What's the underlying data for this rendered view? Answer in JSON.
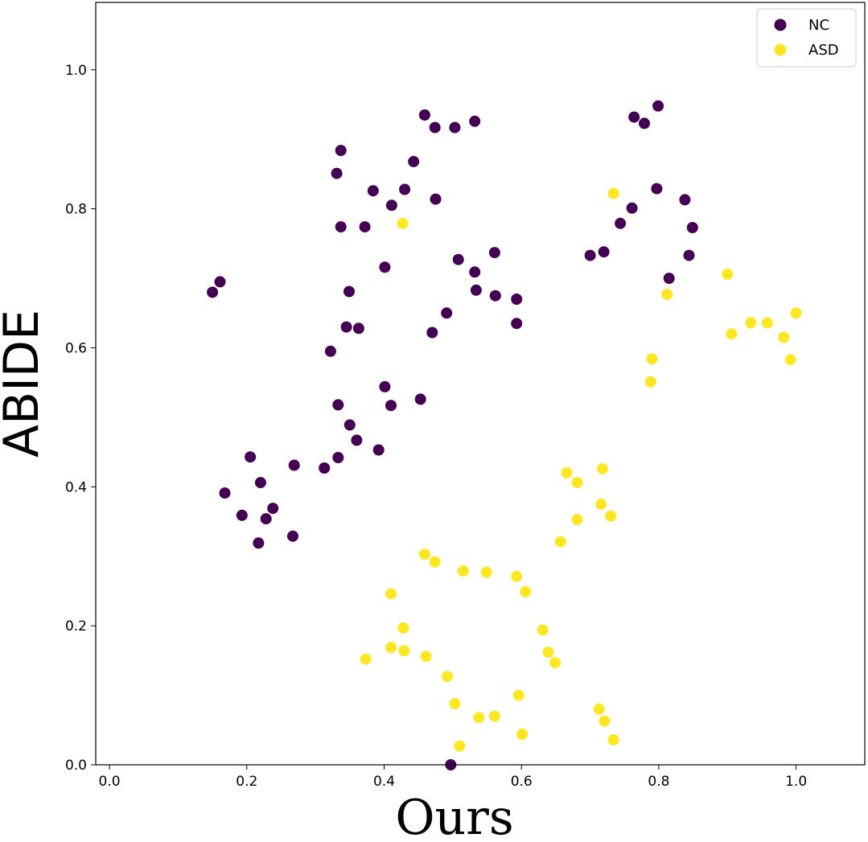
{
  "chart_data": {
    "type": "scatter",
    "xlabel": "Ours",
    "ylabel": "ABIDE",
    "xlim": [
      -0.02,
      1.1
    ],
    "ylim": [
      0.0,
      1.097
    ],
    "xticks": [
      "0.0",
      "0.2",
      "0.4",
      "0.6",
      "0.8",
      "1.0"
    ],
    "yticks": [
      "0.0",
      "0.2",
      "0.4",
      "0.6",
      "0.8",
      "1.0"
    ],
    "grid": false,
    "legend_position": "top-right",
    "series": [
      {
        "name": "NC",
        "color": "#440154",
        "points": [
          [
            0.497,
            0.0
          ],
          [
            0.217,
            0.319
          ],
          [
            0.267,
            0.329
          ],
          [
            0.193,
            0.359
          ],
          [
            0.228,
            0.354
          ],
          [
            0.238,
            0.369
          ],
          [
            0.168,
            0.391
          ],
          [
            0.22,
            0.406
          ],
          [
            0.205,
            0.443
          ],
          [
            0.269,
            0.431
          ],
          [
            0.313,
            0.427
          ],
          [
            0.333,
            0.442
          ],
          [
            0.392,
            0.453
          ],
          [
            0.36,
            0.467
          ],
          [
            0.35,
            0.489
          ],
          [
            0.333,
            0.518
          ],
          [
            0.41,
            0.517
          ],
          [
            0.401,
            0.544
          ],
          [
            0.453,
            0.526
          ],
          [
            0.322,
            0.595
          ],
          [
            0.345,
            0.63
          ],
          [
            0.363,
            0.628
          ],
          [
            0.47,
            0.622
          ],
          [
            0.491,
            0.65
          ],
          [
            0.349,
            0.681
          ],
          [
            0.401,
            0.716
          ],
          [
            0.508,
            0.727
          ],
          [
            0.532,
            0.709
          ],
          [
            0.534,
            0.683
          ],
          [
            0.562,
            0.675
          ],
          [
            0.593,
            0.67
          ],
          [
            0.561,
            0.737
          ],
          [
            0.593,
            0.635
          ],
          [
            0.15,
            0.68
          ],
          [
            0.161,
            0.695
          ],
          [
            0.337,
            0.774
          ],
          [
            0.372,
            0.774
          ],
          [
            0.384,
            0.826
          ],
          [
            0.411,
            0.805
          ],
          [
            0.43,
            0.828
          ],
          [
            0.475,
            0.814
          ],
          [
            0.331,
            0.851
          ],
          [
            0.337,
            0.884
          ],
          [
            0.443,
            0.868
          ],
          [
            0.459,
            0.935
          ],
          [
            0.474,
            0.917
          ],
          [
            0.503,
            0.917
          ],
          [
            0.532,
            0.926
          ],
          [
            0.7,
            0.733
          ],
          [
            0.72,
            0.738
          ],
          [
            0.744,
            0.779
          ],
          [
            0.761,
            0.801
          ],
          [
            0.797,
            0.829
          ],
          [
            0.838,
            0.813
          ],
          [
            0.849,
            0.773
          ],
          [
            0.844,
            0.733
          ],
          [
            0.815,
            0.7
          ],
          [
            0.764,
            0.932
          ],
          [
            0.779,
            0.923
          ],
          [
            0.799,
            0.948
          ]
        ]
      },
      {
        "name": "ASD",
        "color": "#fde725",
        "points": [
          [
            0.427,
            0.779
          ],
          [
            0.734,
            0.822
          ],
          [
            0.812,
            0.677
          ],
          [
            0.9,
            0.706
          ],
          [
            0.906,
            0.62
          ],
          [
            0.934,
            0.636
          ],
          [
            0.958,
            0.636
          ],
          [
            0.982,
            0.615
          ],
          [
            0.992,
            0.583
          ],
          [
            1.0,
            0.65
          ],
          [
            0.79,
            0.584
          ],
          [
            0.788,
            0.551
          ],
          [
            0.666,
            0.42
          ],
          [
            0.681,
            0.406
          ],
          [
            0.718,
            0.426
          ],
          [
            0.681,
            0.353
          ],
          [
            0.716,
            0.375
          ],
          [
            0.73,
            0.358
          ],
          [
            0.657,
            0.321
          ],
          [
            0.459,
            0.303
          ],
          [
            0.474,
            0.292
          ],
          [
            0.515,
            0.279
          ],
          [
            0.549,
            0.277
          ],
          [
            0.593,
            0.271
          ],
          [
            0.606,
            0.249
          ],
          [
            0.41,
            0.246
          ],
          [
            0.428,
            0.197
          ],
          [
            0.41,
            0.169
          ],
          [
            0.429,
            0.164
          ],
          [
            0.461,
            0.156
          ],
          [
            0.373,
            0.152
          ],
          [
            0.631,
            0.194
          ],
          [
            0.639,
            0.162
          ],
          [
            0.649,
            0.147
          ],
          [
            0.492,
            0.127
          ],
          [
            0.596,
            0.1
          ],
          [
            0.503,
            0.088
          ],
          [
            0.538,
            0.068
          ],
          [
            0.561,
            0.07
          ],
          [
            0.601,
            0.044
          ],
          [
            0.51,
            0.027
          ],
          [
            0.713,
            0.08
          ],
          [
            0.721,
            0.063
          ],
          [
            0.734,
            0.036
          ]
        ]
      }
    ]
  }
}
